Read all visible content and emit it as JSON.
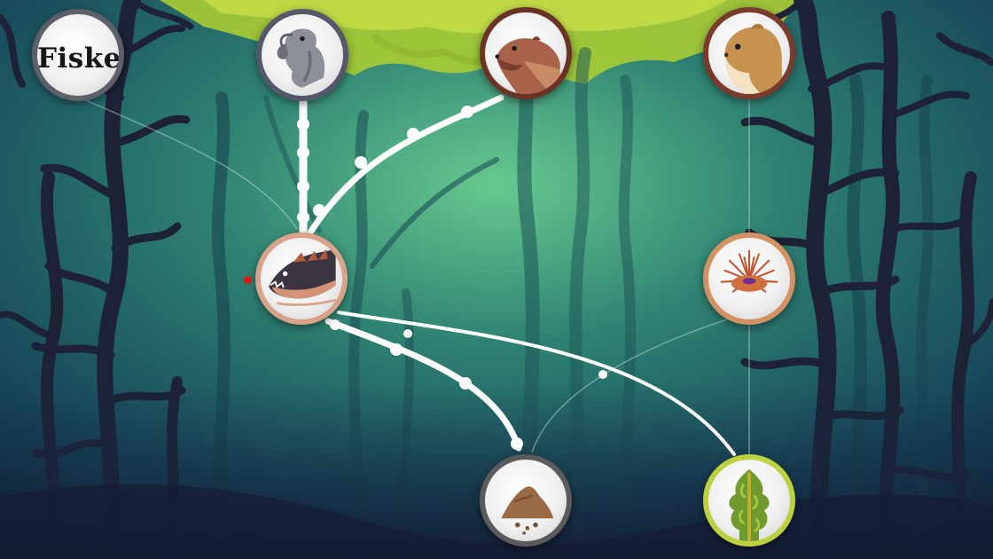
{
  "category_node": {
    "label": "Fiske",
    "border": "#5d6068"
  },
  "nodes": {
    "dodo": {
      "border": "#55586a"
    },
    "otter": {
      "border": "#6b3326"
    },
    "hamster": {
      "border": "#7a3a2c"
    },
    "fish": {
      "border": "#d9a38a"
    },
    "urchin": {
      "border": "#d39263"
    },
    "dirt": {
      "border": "#5b5b5b"
    },
    "plant": {
      "border": "#bcd040"
    }
  },
  "colors": {
    "water_center": "#5fbf8a",
    "water_edge": "#123640",
    "canopy": "#b6d33a",
    "kelp_dark": "#1e2438",
    "path": "#ffffff",
    "marker": "#e01515"
  }
}
